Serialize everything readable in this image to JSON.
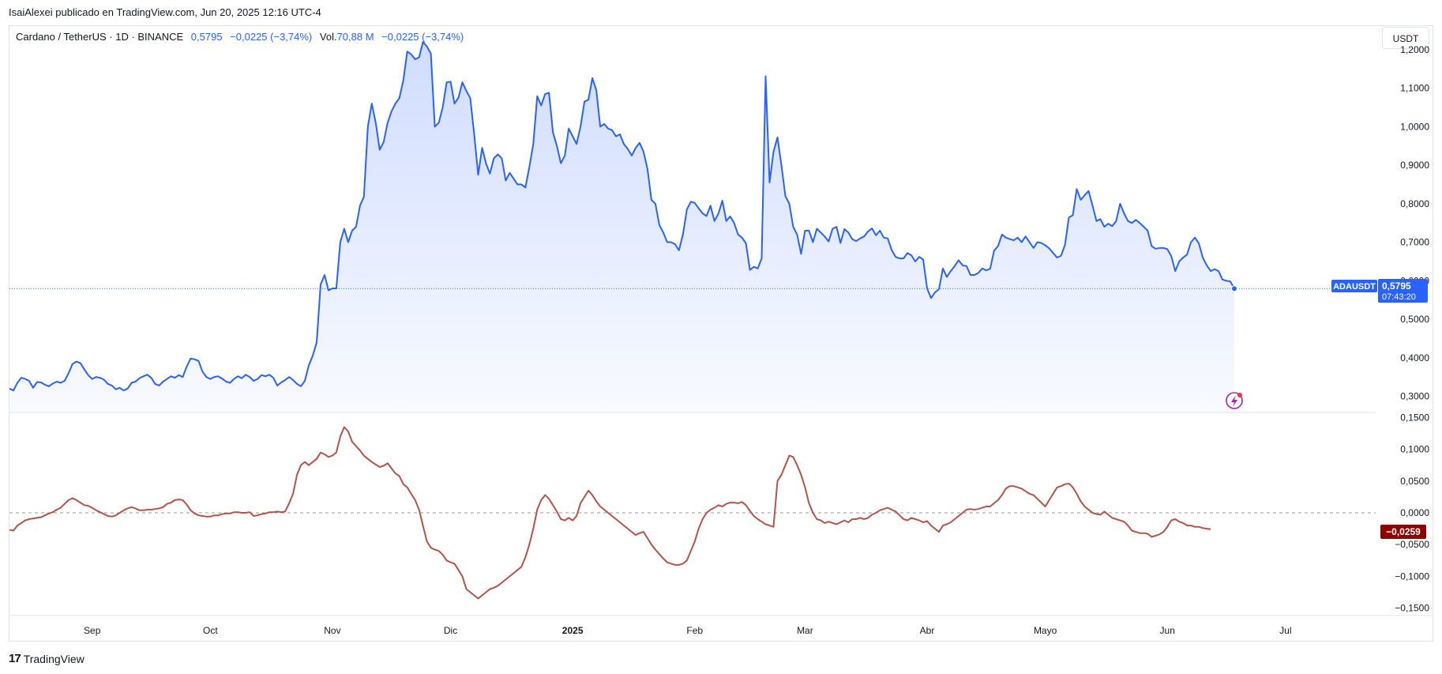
{
  "attribution": "IsaiAlexei publicado en TradingView.com, Jun 20, 2025 12:16 UTC-4",
  "legend": {
    "symbol": "Cardano / TetherUS · 1D · BINANCE",
    "price": "0,5795",
    "change": "−0,0225 (−3,74%)",
    "vol_label": "Vol.",
    "vol_value": "70,88 M",
    "vol_change": "−0,0225 (−3,74%)"
  },
  "currency_button": "USDT",
  "last_price_tag": {
    "symbol": "ADAUSDT",
    "price": "0,5795",
    "countdown": "07:43:20"
  },
  "indicator_tag": "−0,0259",
  "footer_brand": "TradingView",
  "colors": {
    "price_line": "#2962ff",
    "oscillator_line": "#b2544b",
    "indicator_tag_bg": "#8b0000",
    "price_tag_bg": "#2962ff"
  },
  "chart_data": [
    {
      "type": "area",
      "series": [
        {
          "name": "ADAUSDT",
          "values": [
            0.32,
            0.315,
            0.335,
            0.348,
            0.345,
            0.34,
            0.322,
            0.337,
            0.336,
            0.33,
            0.326,
            0.333,
            0.338,
            0.335,
            0.34,
            0.36,
            0.384,
            0.39,
            0.386,
            0.37,
            0.355,
            0.345,
            0.35,
            0.348,
            0.343,
            0.332,
            0.328,
            0.318,
            0.322,
            0.315,
            0.32,
            0.335,
            0.338,
            0.347,
            0.352,
            0.356,
            0.348,
            0.332,
            0.328,
            0.338,
            0.345,
            0.352,
            0.348,
            0.355,
            0.35,
            0.377,
            0.398,
            0.396,
            0.392,
            0.364,
            0.35,
            0.345,
            0.35,
            0.352,
            0.346,
            0.338,
            0.335,
            0.345,
            0.352,
            0.347,
            0.356,
            0.35,
            0.34,
            0.345,
            0.355,
            0.352,
            0.356,
            0.348,
            0.328,
            0.336,
            0.342,
            0.35,
            0.342,
            0.332,
            0.326,
            0.34,
            0.38,
            0.405,
            0.44,
            0.59,
            0.615,
            0.575,
            0.58,
            0.58,
            0.7,
            0.735,
            0.7,
            0.73,
            0.74,
            0.795,
            0.818,
            1.0,
            1.06,
            1.01,
            0.94,
            0.96,
            1.01,
            1.04,
            1.06,
            1.074,
            1.12,
            1.195,
            1.188,
            1.175,
            1.18,
            1.22,
            1.208,
            1.19,
            1.0,
            1.01,
            1.05,
            1.115,
            1.117,
            1.06,
            1.075,
            1.115,
            1.093,
            1.074,
            0.98,
            0.875,
            0.945,
            0.905,
            0.878,
            0.918,
            0.928,
            0.918,
            0.86,
            0.88,
            0.865,
            0.85,
            0.85,
            0.842,
            0.895,
            0.955,
            1.079,
            1.055,
            1.085,
            1.088,
            0.985,
            0.95,
            0.905,
            0.925,
            0.995,
            0.975,
            0.955,
            1.0,
            1.065,
            1.07,
            1.126,
            1.095,
            1.0,
            1.007,
            0.995,
            0.991,
            0.975,
            0.98,
            0.955,
            0.942,
            0.925,
            0.945,
            0.958,
            0.935,
            0.89,
            0.81,
            0.8,
            0.745,
            0.725,
            0.7,
            0.7,
            0.695,
            0.679,
            0.72,
            0.785,
            0.805,
            0.802,
            0.788,
            0.775,
            0.768,
            0.795,
            0.755,
            0.774,
            0.808,
            0.755,
            0.767,
            0.75,
            0.72,
            0.712,
            0.697,
            0.628,
            0.636,
            0.632,
            0.658,
            1.131,
            0.855,
            0.935,
            0.972,
            0.9,
            0.82,
            0.8,
            0.74,
            0.72,
            0.67,
            0.73,
            0.73,
            0.7,
            0.735,
            0.725,
            0.715,
            0.702,
            0.735,
            0.74,
            0.698,
            0.734,
            0.725,
            0.708,
            0.703,
            0.71,
            0.715,
            0.728,
            0.736,
            0.718,
            0.73,
            0.712,
            0.71,
            0.68,
            0.662,
            0.658,
            0.658,
            0.672,
            0.666,
            0.65,
            0.662,
            0.655,
            0.58,
            0.555,
            0.57,
            0.578,
            0.632,
            0.61,
            0.625,
            0.638,
            0.653,
            0.64,
            0.638,
            0.615,
            0.615,
            0.62,
            0.632,
            0.627,
            0.631,
            0.678,
            0.69,
            0.72,
            0.712,
            0.708,
            0.705,
            0.712,
            0.7,
            0.715,
            0.7,
            0.685,
            0.7,
            0.698,
            0.692,
            0.684,
            0.672,
            0.66,
            0.665,
            0.693,
            0.764,
            0.77,
            0.838,
            0.81,
            0.822,
            0.833,
            0.795,
            0.755,
            0.76,
            0.74,
            0.748,
            0.742,
            0.755,
            0.8,
            0.775,
            0.755,
            0.75,
            0.758,
            0.75,
            0.74,
            0.73,
            0.69,
            0.683,
            0.685,
            0.685,
            0.682,
            0.664,
            0.625,
            0.65,
            0.66,
            0.668,
            0.7,
            0.712,
            0.697,
            0.66,
            0.64,
            0.625,
            0.63,
            0.625,
            0.603,
            0.6,
            0.598,
            0.5795
          ]
        }
      ],
      "x_ticks": [
        "Sep",
        "Oct",
        "Nov",
        "Dic",
        "2025",
        "Feb",
        "Mar",
        "Abr",
        "Mayo",
        "Jun",
        "Jul"
      ],
      "y_ticks": [
        "1,2000",
        "1,1000",
        "1,0000",
        "0,9000",
        "0,8000",
        "0,7000",
        "0,6000",
        "0,5000",
        "0,4000",
        "0,3000"
      ],
      "ylim": [
        0.26,
        1.255
      ],
      "y_scale": "linear"
    },
    {
      "type": "line",
      "series": [
        {
          "name": "",
          "values": [
            -0.027,
            -0.028,
            -0.02,
            -0.016,
            -0.012,
            -0.01,
            -0.009,
            -0.008,
            -0.007,
            -0.004,
            -0.001,
            0.001,
            0.005,
            0.008,
            0.014,
            0.02,
            0.023,
            0.02,
            0.016,
            0.012,
            0.011,
            0.008,
            0.004,
            0.001,
            -0.002,
            -0.005,
            -0.006,
            -0.004,
            0.0,
            0.004,
            0.007,
            0.009,
            0.007,
            0.004,
            0.004,
            0.005,
            0.005,
            0.006,
            0.007,
            0.009,
            0.014,
            0.016,
            0.02,
            0.021,
            0.02,
            0.013,
            0.004,
            -0.001,
            -0.004,
            -0.005,
            -0.006,
            -0.006,
            -0.004,
            -0.004,
            -0.002,
            -0.001,
            -0.001,
            0.001,
            0.001,
            0.0,
            0.0,
            0.001,
            -0.005,
            -0.004,
            -0.002,
            -0.001,
            0.001,
            0.001,
            0.002,
            0.001,
            0.002,
            0.015,
            0.03,
            0.06,
            0.075,
            0.08,
            0.075,
            0.08,
            0.085,
            0.095,
            0.092,
            0.088,
            0.09,
            0.095,
            0.12,
            0.135,
            0.128,
            0.112,
            0.105,
            0.098,
            0.09,
            0.085,
            0.08,
            0.076,
            0.072,
            0.074,
            0.078,
            0.07,
            0.062,
            0.058,
            0.045,
            0.04,
            0.03,
            0.02,
            0.005,
            -0.02,
            -0.045,
            -0.055,
            -0.058,
            -0.06,
            -0.066,
            -0.075,
            -0.078,
            -0.08,
            -0.09,
            -0.1,
            -0.12,
            -0.125,
            -0.13,
            -0.135,
            -0.13,
            -0.125,
            -0.12,
            -0.118,
            -0.115,
            -0.11,
            -0.105,
            -0.1,
            -0.095,
            -0.09,
            -0.085,
            -0.07,
            -0.05,
            -0.025,
            0.005,
            0.02,
            0.028,
            0.022,
            0.012,
            0.002,
            -0.01,
            -0.012,
            -0.008,
            -0.012,
            -0.005,
            0.015,
            0.025,
            0.035,
            0.028,
            0.018,
            0.01,
            0.005,
            0.0,
            -0.005,
            -0.01,
            -0.015,
            -0.02,
            -0.025,
            -0.03,
            -0.035,
            -0.032,
            -0.03,
            -0.04,
            -0.05,
            -0.058,
            -0.065,
            -0.072,
            -0.078,
            -0.08,
            -0.082,
            -0.082,
            -0.08,
            -0.075,
            -0.06,
            -0.045,
            -0.025,
            -0.01,
            0.0,
            0.005,
            0.008,
            0.012,
            0.01,
            0.014,
            0.016,
            0.016,
            0.015,
            0.017,
            0.012,
            0.003,
            -0.005,
            -0.01,
            -0.014,
            -0.018,
            -0.02,
            -0.022,
            0.05,
            0.06,
            0.075,
            0.09,
            0.088,
            0.075,
            0.06,
            0.04,
            0.015,
            0.0,
            -0.01,
            -0.012,
            -0.016,
            -0.014,
            -0.016,
            -0.018,
            -0.015,
            -0.012,
            -0.015,
            -0.01,
            -0.01,
            -0.008,
            -0.01,
            -0.008,
            -0.003,
            0.0,
            0.004,
            0.006,
            0.008,
            0.005,
            0.002,
            -0.004,
            -0.01,
            -0.012,
            -0.008,
            -0.01,
            -0.012,
            -0.015,
            -0.013,
            -0.02,
            -0.025,
            -0.03,
            -0.02,
            -0.018,
            -0.015,
            -0.01,
            -0.005,
            0.0,
            0.005,
            0.006,
            0.005,
            0.006,
            0.008,
            0.01,
            0.01,
            0.015,
            0.02,
            0.028,
            0.038,
            0.042,
            0.042,
            0.04,
            0.038,
            0.034,
            0.03,
            0.028,
            0.022,
            0.016,
            0.01,
            0.02,
            0.03,
            0.04,
            0.042,
            0.045,
            0.046,
            0.04,
            0.03,
            0.018,
            0.01,
            0.005,
            0.0,
            -0.002,
            -0.003,
            0.002,
            -0.003,
            -0.008,
            -0.01,
            -0.012,
            -0.014,
            -0.02,
            -0.028,
            -0.03,
            -0.032,
            -0.032,
            -0.033,
            -0.038,
            -0.036,
            -0.034,
            -0.03,
            -0.022,
            -0.012,
            -0.01,
            -0.014,
            -0.016,
            -0.02,
            -0.02,
            -0.022,
            -0.022,
            -0.024,
            -0.025,
            -0.0259
          ]
        }
      ],
      "y_ticks": [
        "0,1500",
        "0,1000",
        "0,0500",
        "0,0000",
        "−0,0500",
        "−0,1000",
        "−0,1500"
      ],
      "ylim": [
        -0.158,
        0.153
      ],
      "zero_line": true
    }
  ]
}
